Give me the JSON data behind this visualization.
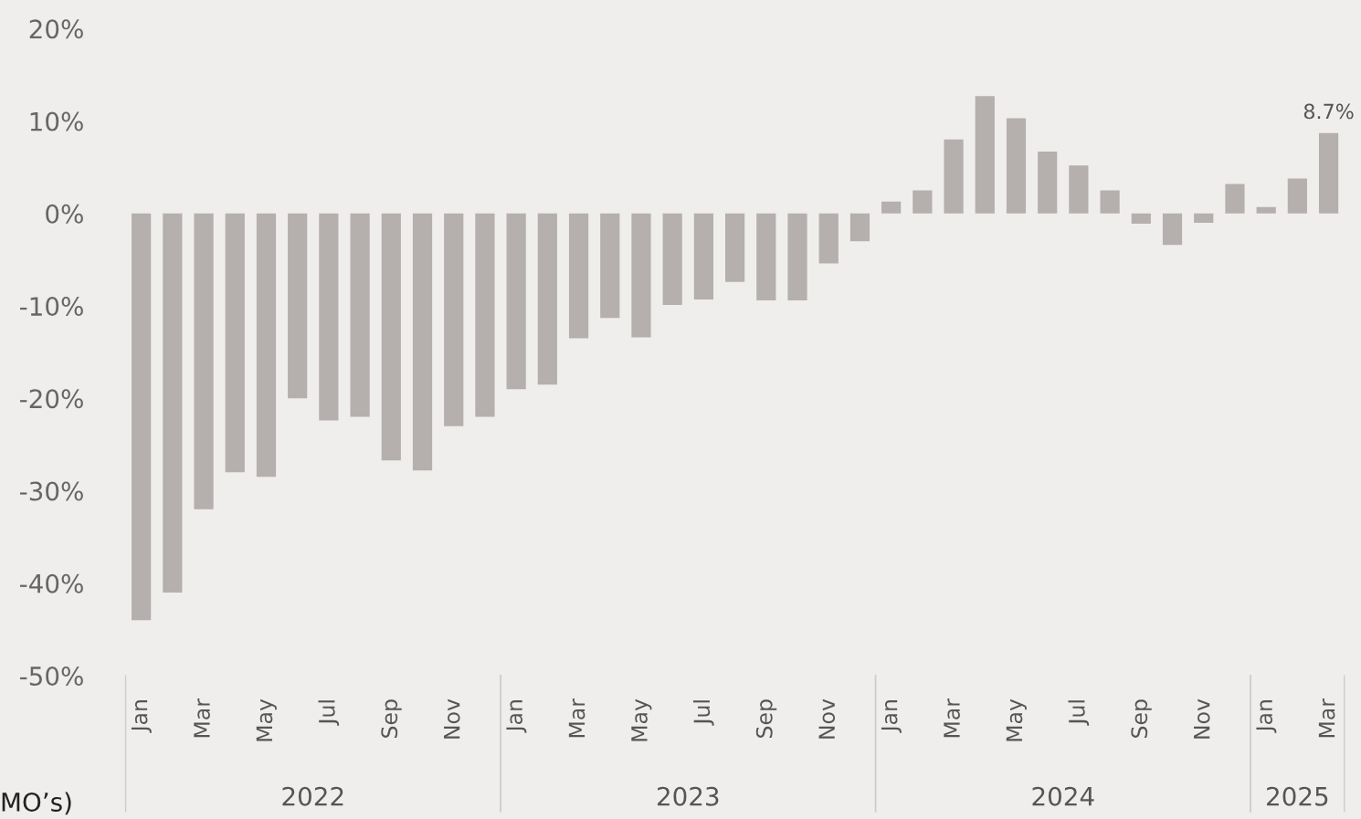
{
  "chart_data": {
    "type": "bar",
    "categories": [
      "Jan",
      null,
      "Mar",
      null,
      "May",
      null,
      "Jul",
      null,
      "Sep",
      null,
      "Nov",
      null,
      "Jan",
      null,
      "Mar",
      null,
      "May",
      null,
      "Jul",
      null,
      "Sep",
      null,
      "Nov",
      null,
      "Jan",
      null,
      "Mar",
      null,
      "May",
      null,
      "Jul",
      null,
      "Sep",
      null,
      "Nov",
      null,
      "Jan",
      null,
      "Mar"
    ],
    "values": [
      -44,
      -41,
      -32,
      -28,
      -28.5,
      -20,
      -22.4,
      -22,
      -26.7,
      -27.8,
      -23,
      -22,
      -19,
      -18.5,
      -13.5,
      -11.3,
      -13.4,
      -9.9,
      -9.3,
      -7.4,
      -9.4,
      -9.4,
      -5.4,
      -3,
      1.3,
      2.5,
      8,
      12.7,
      10.3,
      6.7,
      5.2,
      2.5,
      -1.1,
      -3.4,
      -1,
      3.2,
      0.7,
      3.8,
      8.7
    ],
    "value_labels": [
      null,
      null,
      null,
      null,
      null,
      null,
      null,
      null,
      null,
      null,
      null,
      null,
      null,
      null,
      null,
      null,
      null,
      null,
      null,
      null,
      null,
      null,
      null,
      null,
      null,
      null,
      null,
      null,
      null,
      null,
      null,
      null,
      null,
      null,
      null,
      null,
      null,
      null,
      "8.7%"
    ],
    "color": "#b5afae",
    "ylim": [
      -50,
      20
    ],
    "yticks": [
      {
        "value": -50,
        "label": "-50%"
      },
      {
        "value": -40,
        "label": "-40%"
      },
      {
        "value": -30,
        "label": "-30%"
      },
      {
        "value": -20,
        "label": "-20%"
      },
      {
        "value": -10,
        "label": "-10%"
      },
      {
        "value": 0,
        "label": "0%"
      },
      {
        "value": 10,
        "label": "10%"
      },
      {
        "value": 20,
        "label": "20%"
      }
    ],
    "annotations": [
      "2022",
      "2023",
      "2024",
      "2025",
      "MO’s)"
    ],
    "grid": false
  }
}
